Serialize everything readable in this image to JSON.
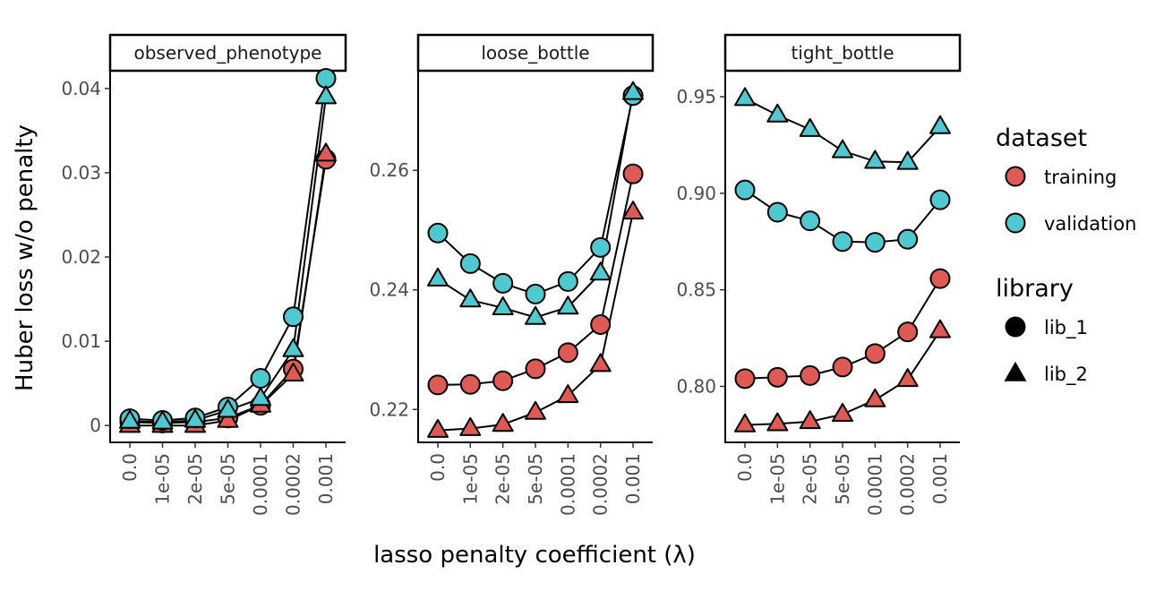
{
  "chart_data": {
    "type": "line",
    "xlabel": "lasso penalty coefficient (λ)",
    "ylabel": "Huber loss w/o penalty",
    "x_categories": [
      "0.0",
      "1e-05",
      "2e-05",
      "5e-05",
      "0.0001",
      "0.0002",
      "0.001"
    ],
    "facets": [
      {
        "name": "observed_phenotype",
        "ylim": [
          -0.002,
          0.042
        ],
        "yticks": [
          0,
          0.01,
          0.02,
          0.03,
          0.04
        ],
        "ytick_labels": [
          "0",
          "0.01",
          "0.02",
          "0.03",
          "0.04"
        ],
        "series": [
          {
            "dataset": "training",
            "library": "lib_1",
            "values": [
              0.0004,
              0.0003,
              0.0004,
              0.0009,
              0.0024,
              0.0067,
              0.0316
            ]
          },
          {
            "dataset": "training",
            "library": "lib_2",
            "values": [
              0.0,
              0.0,
              0.0,
              0.0006,
              0.0024,
              0.0061,
              0.0322
            ]
          },
          {
            "dataset": "validation",
            "library": "lib_1",
            "values": [
              0.0008,
              0.0006,
              0.0009,
              0.0022,
              0.0056,
              0.0129,
              0.0412
            ]
          },
          {
            "dataset": "validation",
            "library": "lib_2",
            "values": [
              0.0005,
              0.0004,
              0.0006,
              0.0018,
              0.0032,
              0.009,
              0.039
            ]
          }
        ]
      },
      {
        "name": "loose_bottle",
        "ylim": [
          0.2145,
          0.2765
        ],
        "yticks": [
          0.22,
          0.24,
          0.26
        ],
        "ytick_labels": [
          "0.22",
          "0.24",
          "0.26"
        ],
        "series": [
          {
            "dataset": "training",
            "library": "lib_1",
            "values": [
              0.2241,
              0.2242,
              0.2248,
              0.2268,
              0.2295,
              0.2342,
              0.2594
            ]
          },
          {
            "dataset": "training",
            "library": "lib_2",
            "values": [
              0.2165,
              0.2168,
              0.2175,
              0.2195,
              0.2223,
              0.2275,
              0.253
            ]
          },
          {
            "dataset": "validation",
            "library": "lib_1",
            "values": [
              0.2495,
              0.2444,
              0.2411,
              0.2393,
              0.2414,
              0.2471,
              0.2725
            ]
          },
          {
            "dataset": "validation",
            "library": "lib_2",
            "values": [
              0.2418,
              0.2383,
              0.237,
              0.2354,
              0.2371,
              0.2428,
              0.273
            ]
          }
        ]
      },
      {
        "name": "tight_bottle",
        "ylim": [
          0.771,
          0.963
        ],
        "yticks": [
          0.8,
          0.85,
          0.9,
          0.95
        ],
        "ytick_labels": [
          "0.80",
          "0.85",
          "0.90",
          "0.95"
        ],
        "series": [
          {
            "dataset": "training",
            "library": "lib_1",
            "values": [
              0.804,
              0.8047,
              0.8056,
              0.81,
              0.817,
              0.8282,
              0.8558
            ]
          },
          {
            "dataset": "training",
            "library": "lib_2",
            "values": [
              0.78,
              0.7806,
              0.7817,
              0.7855,
              0.793,
              0.8035,
              0.8288
            ]
          },
          {
            "dataset": "validation",
            "library": "lib_1",
            "values": [
              0.9017,
              0.8902,
              0.8857,
              0.875,
              0.8746,
              0.8762,
              0.8966
            ]
          },
          {
            "dataset": "validation",
            "library": "lib_2",
            "values": [
              0.949,
              0.9405,
              0.933,
              0.922,
              0.9165,
              0.916,
              0.9345
            ]
          }
        ]
      }
    ],
    "legend": {
      "position": "right",
      "dataset": {
        "title": "dataset",
        "items": [
          {
            "label": "training",
            "color": "#e05a55"
          },
          {
            "label": "validation",
            "color": "#4fc9d0"
          }
        ]
      },
      "library": {
        "title": "library",
        "items": [
          {
            "label": "lib_1",
            "shape": "circle"
          },
          {
            "label": "lib_2",
            "shape": "triangle"
          }
        ]
      }
    },
    "grid": false
  }
}
